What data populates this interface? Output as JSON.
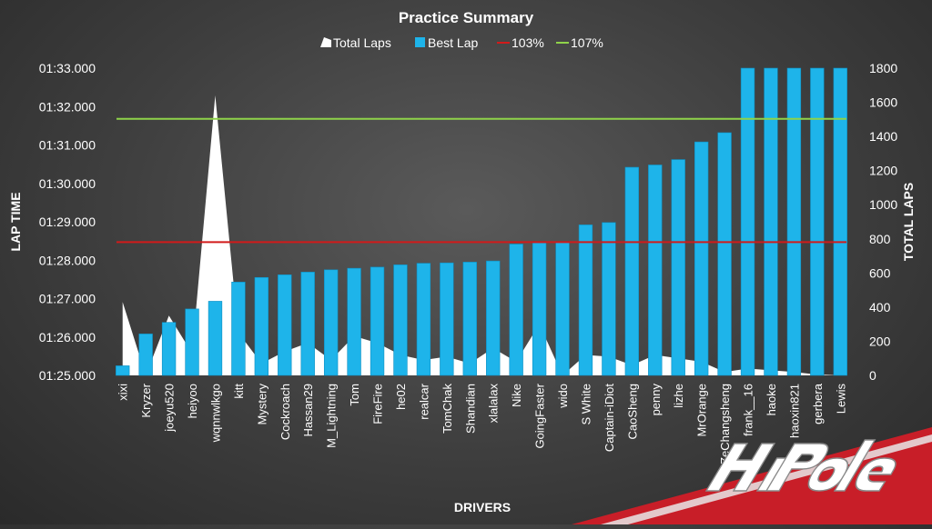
{
  "chart_data": {
    "type": "bar",
    "title": "Practice Summary",
    "xlabel": "DRIVERS",
    "ylabel": "LAP TIME",
    "y2label": "TOTAL LAPS",
    "legend_position": "top",
    "grid": false,
    "categories": [
      "xixi",
      "Kryzer",
      "joeyu520",
      "heiyoo",
      "wqnnwlkgo",
      "kitt",
      "Mystery",
      "Cockroach",
      "Hassan29",
      "M_Lightning",
      "Tom",
      "FireFire",
      "he02",
      "realcar",
      "TomChak",
      "Shandian",
      "xlalalax",
      "Nike",
      "GoingFaster",
      "wido",
      "S White",
      "Captain-iDiot",
      "CaoSheng",
      "penny",
      "lizhe",
      "MrOrange",
      "ZeChangsheng",
      "frank__16",
      "haoke",
      "haoxin821",
      "gerbera",
      "Lewis"
    ],
    "ylim_seconds": [
      85,
      93
    ],
    "y_ticks": [
      "01:25.000",
      "01:26.000",
      "01:27.000",
      "01:28.000",
      "01:29.000",
      "01:30.000",
      "01:31.000",
      "01:32.000",
      "01:33.000"
    ],
    "y2lim": [
      0,
      1800
    ],
    "y2_ticks": [
      0,
      200,
      400,
      600,
      800,
      1000,
      1200,
      1400,
      1600,
      1800
    ],
    "series": [
      {
        "name": "Total Laps",
        "type": "area",
        "axis": "secondary",
        "color": "#ffffff",
        "values": [
          430,
          0,
          350,
          130,
          1640,
          250,
          70,
          140,
          190,
          90,
          230,
          190,
          120,
          90,
          110,
          70,
          160,
          80,
          300,
          0,
          120,
          110,
          60,
          120,
          100,
          80,
          20,
          40,
          30,
          20,
          5,
          0
        ]
      },
      {
        "name": "Best Lap",
        "type": "bar",
        "axis": "primary",
        "color": "#1eb4ea",
        "values": [
          85.25,
          86.08,
          86.38,
          86.73,
          86.93,
          87.43,
          87.55,
          87.62,
          87.69,
          87.75,
          87.79,
          87.82,
          87.88,
          87.92,
          87.93,
          87.95,
          87.98,
          88.42,
          88.45,
          88.48,
          88.92,
          88.98,
          90.42,
          90.48,
          90.62,
          91.08,
          91.32,
          93.0,
          93.0,
          93.0,
          93.0,
          93.0
        ]
      },
      {
        "name": "103%",
        "type": "line",
        "axis": "primary",
        "color": "#d21a1a",
        "value": 88.47
      },
      {
        "name": "107%",
        "type": "line",
        "axis": "primary",
        "color": "#8fd34a",
        "value": 91.68
      }
    ]
  },
  "colors": {
    "text": "#ffffff",
    "logo_red": "#c81e28"
  },
  "logo": {
    "icon": "hipole-logo",
    "text": "HiPole"
  }
}
